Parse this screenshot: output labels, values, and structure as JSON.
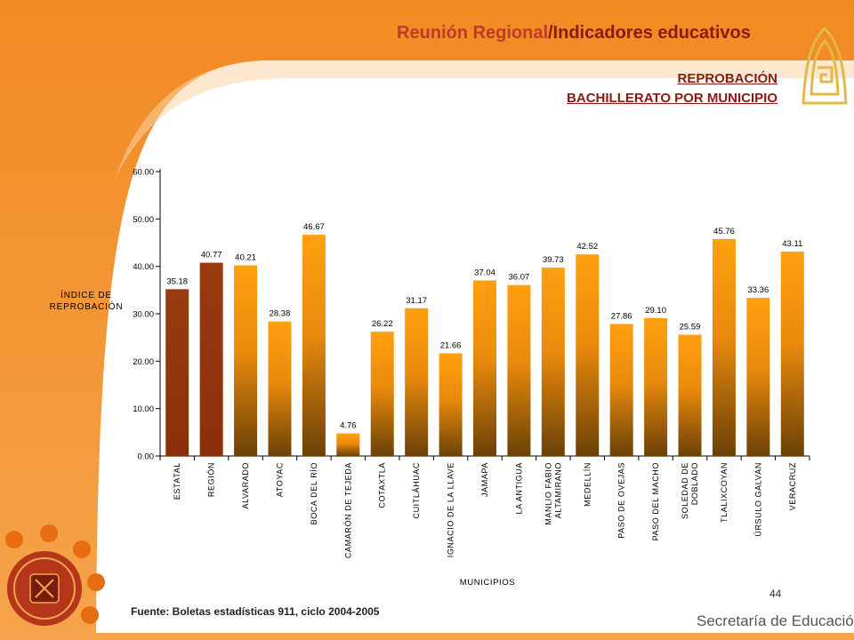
{
  "header": {
    "title_part1": "Reunión Regional",
    "title_part2": "/Indicadores educativos"
  },
  "subtitle": {
    "line1": "REPROBACIÓN",
    "line2": "BACHILLERATO POR MUNICIPIO"
  },
  "footer": {
    "source": "Fuente: Boletas estadísticas 911, ciclo 2004-2005",
    "page_number": "44",
    "brand": "Secretaría de Educación"
  },
  "colors": {
    "accent_orange": "#f07f1e",
    "bar_dark": "#8b2f0c",
    "bar_top": "#ffa010",
    "bar_bottom": "#6b4107",
    "title_red": "#c0392b"
  },
  "icons": [
    "state-seal-icon",
    "institution-logo-icon"
  ],
  "chart_data": {
    "type": "bar",
    "title": "",
    "xlabel": "MUNICIPIOS",
    "ylabel": "ÍNDICE DE REPROBACIÓN",
    "ylim": [
      0,
      60
    ],
    "yticks": [
      "0.00",
      "10.00",
      "20.00",
      "30.00",
      "40.00",
      "50.00",
      "60.00"
    ],
    "grid": false,
    "categories": [
      "ESTATAL",
      "REGIÓN",
      "ALVARADO",
      "ATOYAC",
      "BOCA DEL RÍO",
      "CAMARÓN DE TEJEDA",
      "COTAXTLA",
      "CUITLÁHUAC",
      "IGNACIO DE LA LLAVE",
      "JAMAPA",
      "LA ANTIGUA",
      "MANLIO FABIO ALTAMIRANO",
      "MEDELLÍN",
      "PASO DE OVEJAS",
      "PASO DEL MACHO",
      "SOLEDAD DE DOBLADO",
      "TLALIXCOYAN",
      "ÚRSULO GALVÁN",
      "VERACRUZ"
    ],
    "category_lines": [
      [
        "ESTATAL"
      ],
      [
        "REGIÓN"
      ],
      [
        "ALVARADO"
      ],
      [
        "ATOYAC"
      ],
      [
        "BOCA DEL RÍO"
      ],
      [
        "CAMARÓN DE TEJEDA"
      ],
      [
        "COTAXTLA"
      ],
      [
        "CUITLÁHUAC"
      ],
      [
        "IGNACIO DE LA LLAVE"
      ],
      [
        "JAMAPA"
      ],
      [
        "LA ANTIGUA"
      ],
      [
        "MANLIO FABIO",
        "ALTAMIRANO"
      ],
      [
        "MEDELLÍN"
      ],
      [
        "PASO DE OVEJAS"
      ],
      [
        "PASO DEL MACHO"
      ],
      [
        "SOLEDAD DE",
        "DOBLADO"
      ],
      [
        "TLALIXCOYAN"
      ],
      [
        "ÚRSULO GALVÁN"
      ],
      [
        "VERACRUZ"
      ]
    ],
    "values": [
      35.18,
      40.77,
      40.21,
      28.38,
      46.67,
      4.76,
      26.22,
      31.17,
      21.66,
      37.04,
      36.07,
      39.73,
      42.52,
      27.86,
      29.1,
      25.59,
      45.76,
      33.36,
      43.11
    ],
    "value_labels": [
      "35.18",
      "40.77",
      "40.21",
      "28.38",
      "46.67",
      "4.76",
      "26.22",
      "31.17",
      "21.66",
      "37.04",
      "36.07",
      "39.73",
      "42.52",
      "27.86",
      "29.10",
      "25.59",
      "45.76",
      "33.36",
      "43.11"
    ],
    "highlighted_categories": [
      "ESTATAL",
      "REGIÓN"
    ]
  }
}
